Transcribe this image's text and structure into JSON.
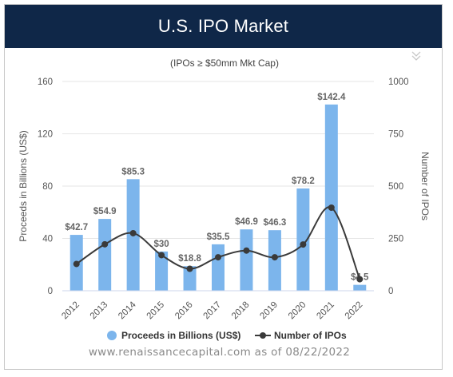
{
  "header": {
    "title": "U.S. IPO Market"
  },
  "menu": {
    "icon": "double-chevron-down-icon"
  },
  "source": "www.renaissancecapital.com as of 08/22/2022",
  "colors": {
    "bar": "#7cb5ec",
    "line": "#3a3a3a",
    "banner": "#0f2748"
  },
  "chart_data": {
    "type": "bar",
    "subtitle": "(IPOs ≥ $50mm Mkt Cap)",
    "categories": [
      "2012",
      "2013",
      "2014",
      "2015",
      "2016",
      "2017",
      "2018",
      "2019",
      "2020",
      "2021",
      "2022"
    ],
    "bar_labels": [
      "$42.7",
      "$54.9",
      "$85.3",
      "$30",
      "$18.8",
      "$35.5",
      "$46.9",
      "$46.3",
      "$78.2",
      "$142.4",
      "$4.5"
    ],
    "series": [
      {
        "name": "Proceeds in Billions (US$)",
        "type": "bar",
        "axis": "left",
        "values": [
          42.7,
          54.9,
          85.3,
          30,
          18.8,
          35.5,
          46.9,
          46.3,
          78.2,
          142.4,
          4.5
        ]
      },
      {
        "name": "Number of IPOs",
        "type": "line",
        "axis": "right",
        "values": [
          128,
          222,
          275,
          170,
          105,
          160,
          192,
          160,
          221,
          397,
          55
        ]
      }
    ],
    "y_left": {
      "label": "Proceeds in Billions (US$)",
      "min": 0,
      "max": 160,
      "ticks": [
        "0",
        "40",
        "80",
        "120",
        "160"
      ]
    },
    "y_right": {
      "label": "Number of IPOs",
      "min": 0,
      "max": 1000,
      "ticks": [
        "0",
        "250",
        "500",
        "750",
        "1000"
      ]
    },
    "grid": true,
    "legend": "bottom"
  }
}
